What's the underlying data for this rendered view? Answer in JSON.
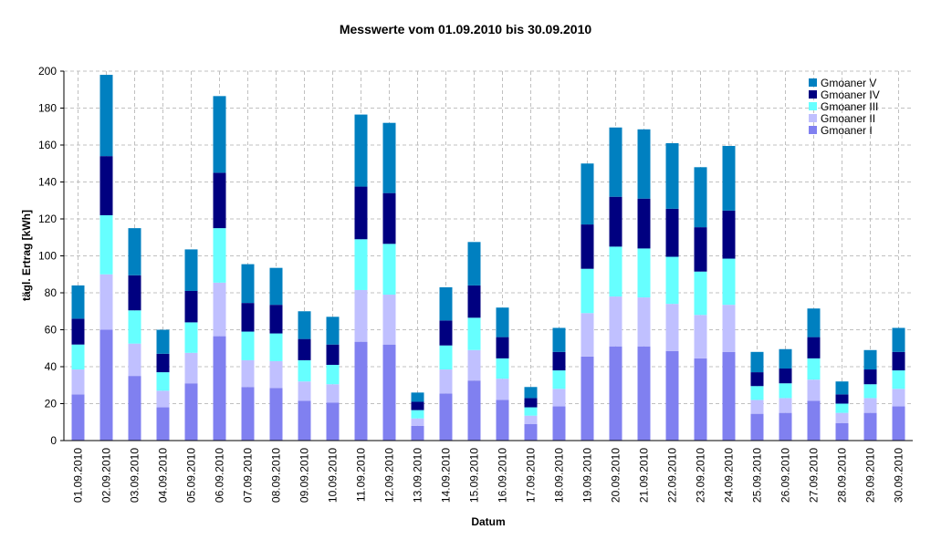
{
  "chart_data": {
    "type": "stacked_bar",
    "title": "Messwerte vom 01.09.2010 bis 30.09.2010",
    "x_label": "Datum",
    "y_label": "tägl. Ertrag [kWh]",
    "categories": [
      "01.09.2010",
      "02.09.2010",
      "03.09.2010",
      "04.09.2010",
      "05.09.2010",
      "06.09.2010",
      "07.09.2010",
      "08.09.2010",
      "09.09.2010",
      "10.09.2010",
      "11.09.2010",
      "12.09.2010",
      "13.09.2010",
      "14.09.2010",
      "15.09.2010",
      "16.09.2010",
      "17.09.2010",
      "18.09.2010",
      "19.09.2010",
      "20.09.2010",
      "21.09.2010",
      "22.09.2010",
      "23.09.2010",
      "24.09.2010",
      "25.09.2010",
      "26.09.2010",
      "27.09.2010",
      "28.09.2010",
      "29.09.2010",
      "30.09.2010"
    ],
    "series": [
      {
        "name": "Gmoaner I",
        "color": "#8080f0",
        "values": [
          25,
          60,
          35,
          18,
          31,
          56.5,
          29,
          28.5,
          21.5,
          20.5,
          53.5,
          52,
          8,
          25.5,
          32.5,
          22,
          9,
          18.5,
          45.5,
          51,
          51,
          48.5,
          44.5,
          48,
          14.5,
          15,
          21.5,
          9.5,
          15,
          18.5
        ]
      },
      {
        "name": "Gmoaner II",
        "color": "#c0c0ff",
        "values": [
          13.5,
          30,
          17.5,
          9,
          16.5,
          29,
          14.5,
          14.5,
          10.5,
          10,
          28,
          27,
          4,
          13,
          16.5,
          11.5,
          4.5,
          9.5,
          23.5,
          27,
          26.5,
          25.5,
          23.5,
          25.5,
          7.5,
          8,
          11.5,
          5.5,
          8,
          9.5
        ]
      },
      {
        "name": "Gmoaner III",
        "color": "#66ffff",
        "values": [
          13.5,
          32,
          18,
          10,
          16.5,
          29.5,
          15.5,
          15,
          11.5,
          10.5,
          27.5,
          27.5,
          4.5,
          13,
          17.5,
          11,
          4.5,
          10,
          24,
          27,
          26.5,
          25.5,
          23.5,
          25,
          7.5,
          8,
          11.5,
          5,
          7.5,
          10
        ]
      },
      {
        "name": "Gmoaner IV",
        "color": "#000080",
        "values": [
          14,
          32,
          19,
          10,
          17,
          30,
          15.5,
          15.5,
          11.5,
          11,
          28.5,
          27.5,
          4.5,
          13.5,
          17.5,
          11.5,
          5,
          10,
          24,
          27,
          27,
          26,
          24,
          26,
          7.5,
          8,
          11.5,
          5,
          8,
          10
        ]
      },
      {
        "name": "Gmoaner V",
        "color": "#0080c0",
        "values": [
          18,
          44,
          25.5,
          13,
          22.5,
          41.5,
          21,
          20,
          15,
          15,
          39,
          38,
          5,
          18,
          23.5,
          16,
          6,
          13,
          33,
          37.5,
          37.5,
          35.5,
          32.5,
          35,
          11,
          10.5,
          15.5,
          7,
          10.5,
          13
        ]
      }
    ],
    "ylim": [
      0,
      200
    ],
    "yticks": [
      0,
      20,
      40,
      60,
      80,
      100,
      120,
      140,
      160,
      180,
      200
    ],
    "grid": true,
    "legend": "top-right"
  }
}
